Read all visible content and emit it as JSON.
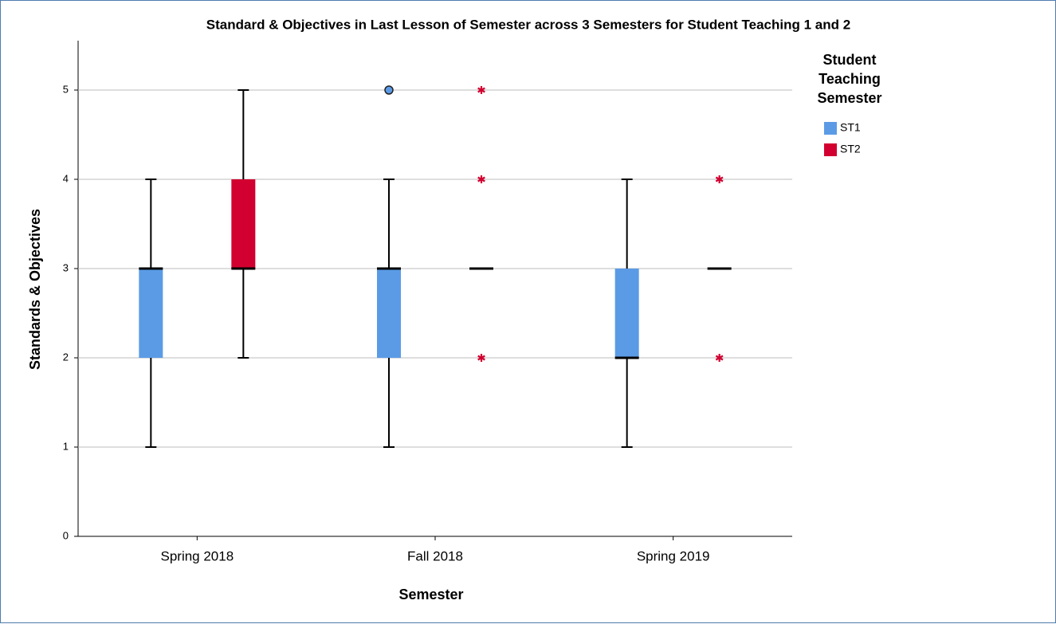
{
  "chart_data": {
    "type": "box",
    "title": "Standard & Objectives in Last Lesson of Semester across 3 Semesters for Student Teaching 1 and 2",
    "xlabel": "Semester",
    "ylabel": "Standards & Objectives",
    "legend_title": "Student Teaching Semester",
    "categories": [
      "Spring 2018",
      "Fall 2018",
      "Spring 2019"
    ],
    "ylim": [
      0,
      5.5
    ],
    "yticks": [
      0,
      1,
      2,
      3,
      4,
      5
    ],
    "grid": true,
    "series": [
      {
        "name": "ST1",
        "color": "#5b9be6",
        "min": [
          1,
          1,
          1
        ],
        "q1": [
          2,
          2,
          2
        ],
        "median": [
          3,
          3,
          2
        ],
        "q3": [
          3,
          3,
          3
        ],
        "max": [
          4,
          4,
          4
        ],
        "outliers": [
          [],
          [
            5
          ],
          []
        ],
        "extremes": [
          [],
          [],
          []
        ]
      },
      {
        "name": "ST2",
        "color": "#d20030",
        "min": [
          2,
          3,
          3
        ],
        "q1": [
          3,
          3,
          3
        ],
        "median": [
          3,
          3,
          3
        ],
        "q3": [
          4,
          3,
          3
        ],
        "max": [
          5,
          3,
          3
        ],
        "outliers": [
          [],
          [],
          []
        ],
        "extremes": [
          [],
          [
            5,
            4,
            2
          ],
          [
            4,
            2
          ]
        ]
      }
    ]
  }
}
